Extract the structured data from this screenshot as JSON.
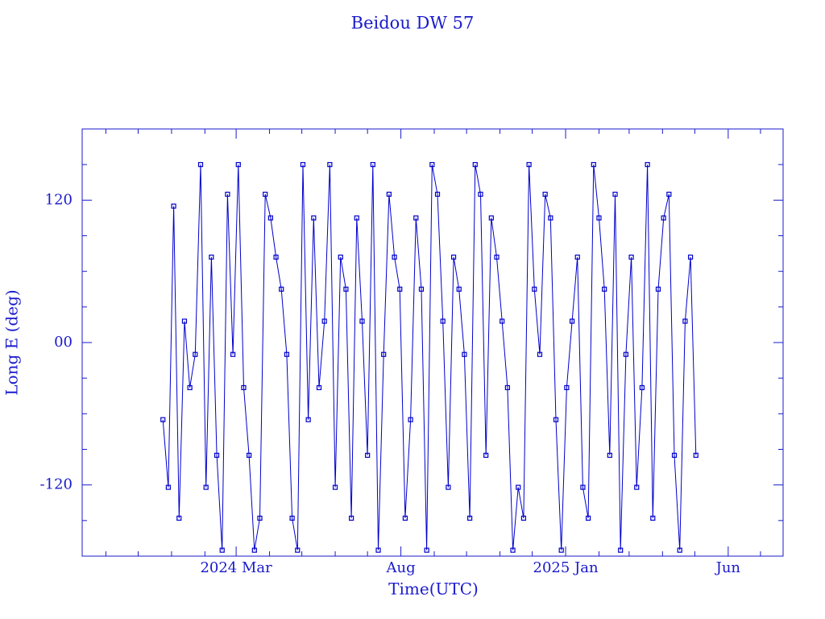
{
  "chart_data": {
    "type": "line",
    "title": "Beidou DW 57",
    "xlabel": "Time(UTC)",
    "ylabel": "Long E (deg)",
    "color": "#0000cc",
    "xlim": [
      "2023-10-10",
      "2025-07-22"
    ],
    "xticks": [
      {
        "value": "2024-03-01",
        "label": "2024 Mar"
      },
      {
        "value": "2024-08-01",
        "label": "Aug"
      },
      {
        "value": "2025-01-01",
        "label": "2025 Jan"
      },
      {
        "value": "2025-06-01",
        "label": "Jun"
      }
    ],
    "xminorticks": [
      "2023-11-01",
      "2023-12-01",
      "2024-01-01",
      "2024-02-01",
      "2024-04-01",
      "2024-05-01",
      "2024-06-01",
      "2024-07-01",
      "2024-09-01",
      "2024-10-01",
      "2024-11-01",
      "2024-12-01",
      "2025-02-01",
      "2025-03-01",
      "2025-04-01",
      "2025-05-01",
      "2025-07-01"
    ],
    "ylim": [
      -180,
      180
    ],
    "yticks": [
      -120,
      {
        "value": 0,
        "label": "00"
      },
      120
    ],
    "yminorticks": [
      -150,
      -90,
      -60,
      -30,
      30,
      60,
      90,
      150
    ],
    "x": [
      "2023-12-24",
      "2023-12-29",
      "2024-01-03",
      "2024-01-08",
      "2024-01-13",
      "2024-01-18",
      "2024-01-23",
      "2024-01-28",
      "2024-02-02",
      "2024-02-07",
      "2024-02-12",
      "2024-02-17",
      "2024-02-22",
      "2024-02-27",
      "2024-03-03",
      "2024-03-08",
      "2024-03-13",
      "2024-03-18",
      "2024-03-23",
      "2024-03-28",
      "2024-04-02",
      "2024-04-07",
      "2024-04-12",
      "2024-04-17",
      "2024-04-22",
      "2024-04-27",
      "2024-05-02",
      "2024-05-07",
      "2024-05-12",
      "2024-05-17",
      "2024-05-22",
      "2024-05-27",
      "2024-06-01",
      "2024-06-06",
      "2024-06-11",
      "2024-06-16",
      "2024-06-21",
      "2024-06-26",
      "2024-07-01",
      "2024-07-06",
      "2024-07-11",
      "2024-07-16",
      "2024-07-21",
      "2024-07-26",
      "2024-07-31",
      "2024-08-05",
      "2024-08-10",
      "2024-08-15",
      "2024-08-20",
      "2024-08-25",
      "2024-08-30",
      "2024-09-04",
      "2024-09-09",
      "2024-09-14",
      "2024-09-19",
      "2024-09-24",
      "2024-09-29",
      "2024-10-04",
      "2024-10-09",
      "2024-10-14",
      "2024-10-19",
      "2024-10-24",
      "2024-10-29",
      "2024-11-03",
      "2024-11-08",
      "2024-11-13",
      "2024-11-18",
      "2024-11-23",
      "2024-11-28",
      "2024-12-03",
      "2024-12-08",
      "2024-12-13",
      "2024-12-18",
      "2024-12-23",
      "2024-12-28",
      "2025-01-02",
      "2025-01-07",
      "2025-01-12",
      "2025-01-17",
      "2025-01-22",
      "2025-01-27",
      "2025-02-01",
      "2025-02-06",
      "2025-02-11",
      "2025-02-16",
      "2025-02-21",
      "2025-02-26",
      "2025-03-03",
      "2025-03-08",
      "2025-03-13",
      "2025-03-18",
      "2025-03-23",
      "2025-03-28",
      "2025-04-02",
      "2025-04-07",
      "2025-04-12",
      "2025-04-17",
      "2025-04-22",
      "2025-04-27",
      "2025-05-02"
    ],
    "values": [
      -65,
      -122,
      115,
      -148,
      18,
      -38,
      -10,
      150,
      -122,
      72,
      -95,
      -175,
      125,
      -10,
      150,
      -38,
      -95,
      -175,
      -148,
      125,
      105,
      72,
      45,
      -10,
      -148,
      -175,
      150,
      -65,
      105,
      -38,
      18,
      150,
      -122,
      72,
      45,
      -148,
      105,
      18,
      -95,
      150,
      -175,
      -10,
      125,
      72,
      45,
      -148,
      -65,
      105,
      45,
      -175,
      150,
      125,
      18,
      -122,
      72,
      45,
      -10,
      -148,
      150,
      125,
      -95,
      105,
      72,
      18,
      -38,
      -175,
      -122,
      -148,
      150,
      45,
      -10,
      125,
      105,
      -65,
      -175,
      -38,
      18,
      72,
      -122,
      -148,
      150,
      105,
      45,
      -95,
      125,
      -175,
      -10,
      72,
      -122,
      -38,
      150,
      -148,
      45,
      105,
      125,
      -95,
      -175,
      18,
      72,
      -95
    ]
  }
}
